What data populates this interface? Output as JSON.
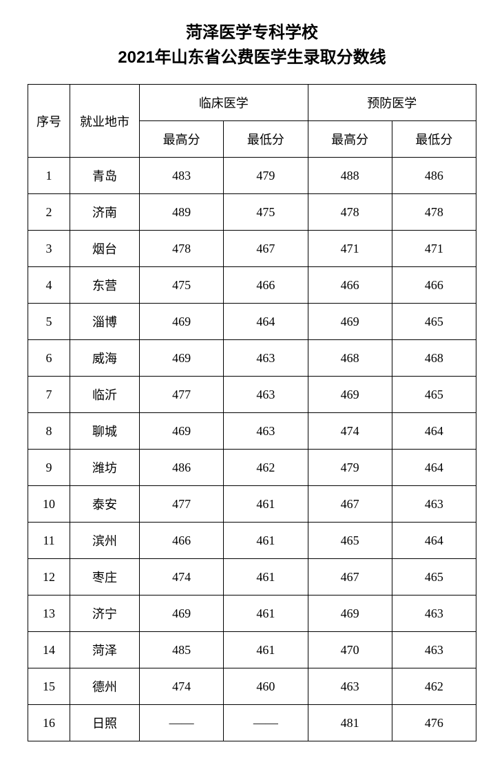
{
  "title": {
    "line1": "菏泽医学专科学校",
    "line2": "2021年山东省公费医学生录取分数线"
  },
  "headers": {
    "seq": "序号",
    "city": "就业地市",
    "major1": "临床医学",
    "major2": "预防医学",
    "high": "最高分",
    "low": "最低分"
  },
  "colors": {
    "background": "#ffffff",
    "text": "#000000",
    "border": "#000000"
  },
  "typography": {
    "title_fontsize": 24,
    "cell_fontsize": 18,
    "title_font": "SimHei",
    "body_font": "SimSun"
  },
  "columns": [
    "序号",
    "就业地市",
    "临床医学-最高分",
    "临床医学-最低分",
    "预防医学-最高分",
    "预防医学-最低分"
  ],
  "rows": [
    {
      "seq": "1",
      "city": "青岛",
      "c1_high": "483",
      "c1_low": "479",
      "c2_high": "488",
      "c2_low": "486"
    },
    {
      "seq": "2",
      "city": "济南",
      "c1_high": "489",
      "c1_low": "475",
      "c2_high": "478",
      "c2_low": "478"
    },
    {
      "seq": "3",
      "city": "烟台",
      "c1_high": "478",
      "c1_low": "467",
      "c2_high": "471",
      "c2_low": "471"
    },
    {
      "seq": "4",
      "city": "东营",
      "c1_high": "475",
      "c1_low": "466",
      "c2_high": "466",
      "c2_low": "466"
    },
    {
      "seq": "5",
      "city": "淄博",
      "c1_high": "469",
      "c1_low": "464",
      "c2_high": "469",
      "c2_low": "465"
    },
    {
      "seq": "6",
      "city": "威海",
      "c1_high": "469",
      "c1_low": "463",
      "c2_high": "468",
      "c2_low": "468"
    },
    {
      "seq": "7",
      "city": "临沂",
      "c1_high": "477",
      "c1_low": "463",
      "c2_high": "469",
      "c2_low": "465"
    },
    {
      "seq": "8",
      "city": "聊城",
      "c1_high": "469",
      "c1_low": "463",
      "c2_high": "474",
      "c2_low": "464"
    },
    {
      "seq": "9",
      "city": "潍坊",
      "c1_high": "486",
      "c1_low": "462",
      "c2_high": "479",
      "c2_low": "464"
    },
    {
      "seq": "10",
      "city": "泰安",
      "c1_high": "477",
      "c1_low": "461",
      "c2_high": "467",
      "c2_low": "463"
    },
    {
      "seq": "11",
      "city": "滨州",
      "c1_high": "466",
      "c1_low": "461",
      "c2_high": "465",
      "c2_low": "464"
    },
    {
      "seq": "12",
      "city": "枣庄",
      "c1_high": "474",
      "c1_low": "461",
      "c2_high": "467",
      "c2_low": "465"
    },
    {
      "seq": "13",
      "city": "济宁",
      "c1_high": "469",
      "c1_low": "461",
      "c2_high": "469",
      "c2_low": "463"
    },
    {
      "seq": "14",
      "city": "菏泽",
      "c1_high": "485",
      "c1_low": "461",
      "c2_high": "470",
      "c2_low": "463"
    },
    {
      "seq": "15",
      "city": "德州",
      "c1_high": "474",
      "c1_low": "460",
      "c2_high": "463",
      "c2_low": "462"
    },
    {
      "seq": "16",
      "city": "日照",
      "c1_high": "——",
      "c1_low": "——",
      "c2_high": "481",
      "c2_low": "476"
    }
  ]
}
